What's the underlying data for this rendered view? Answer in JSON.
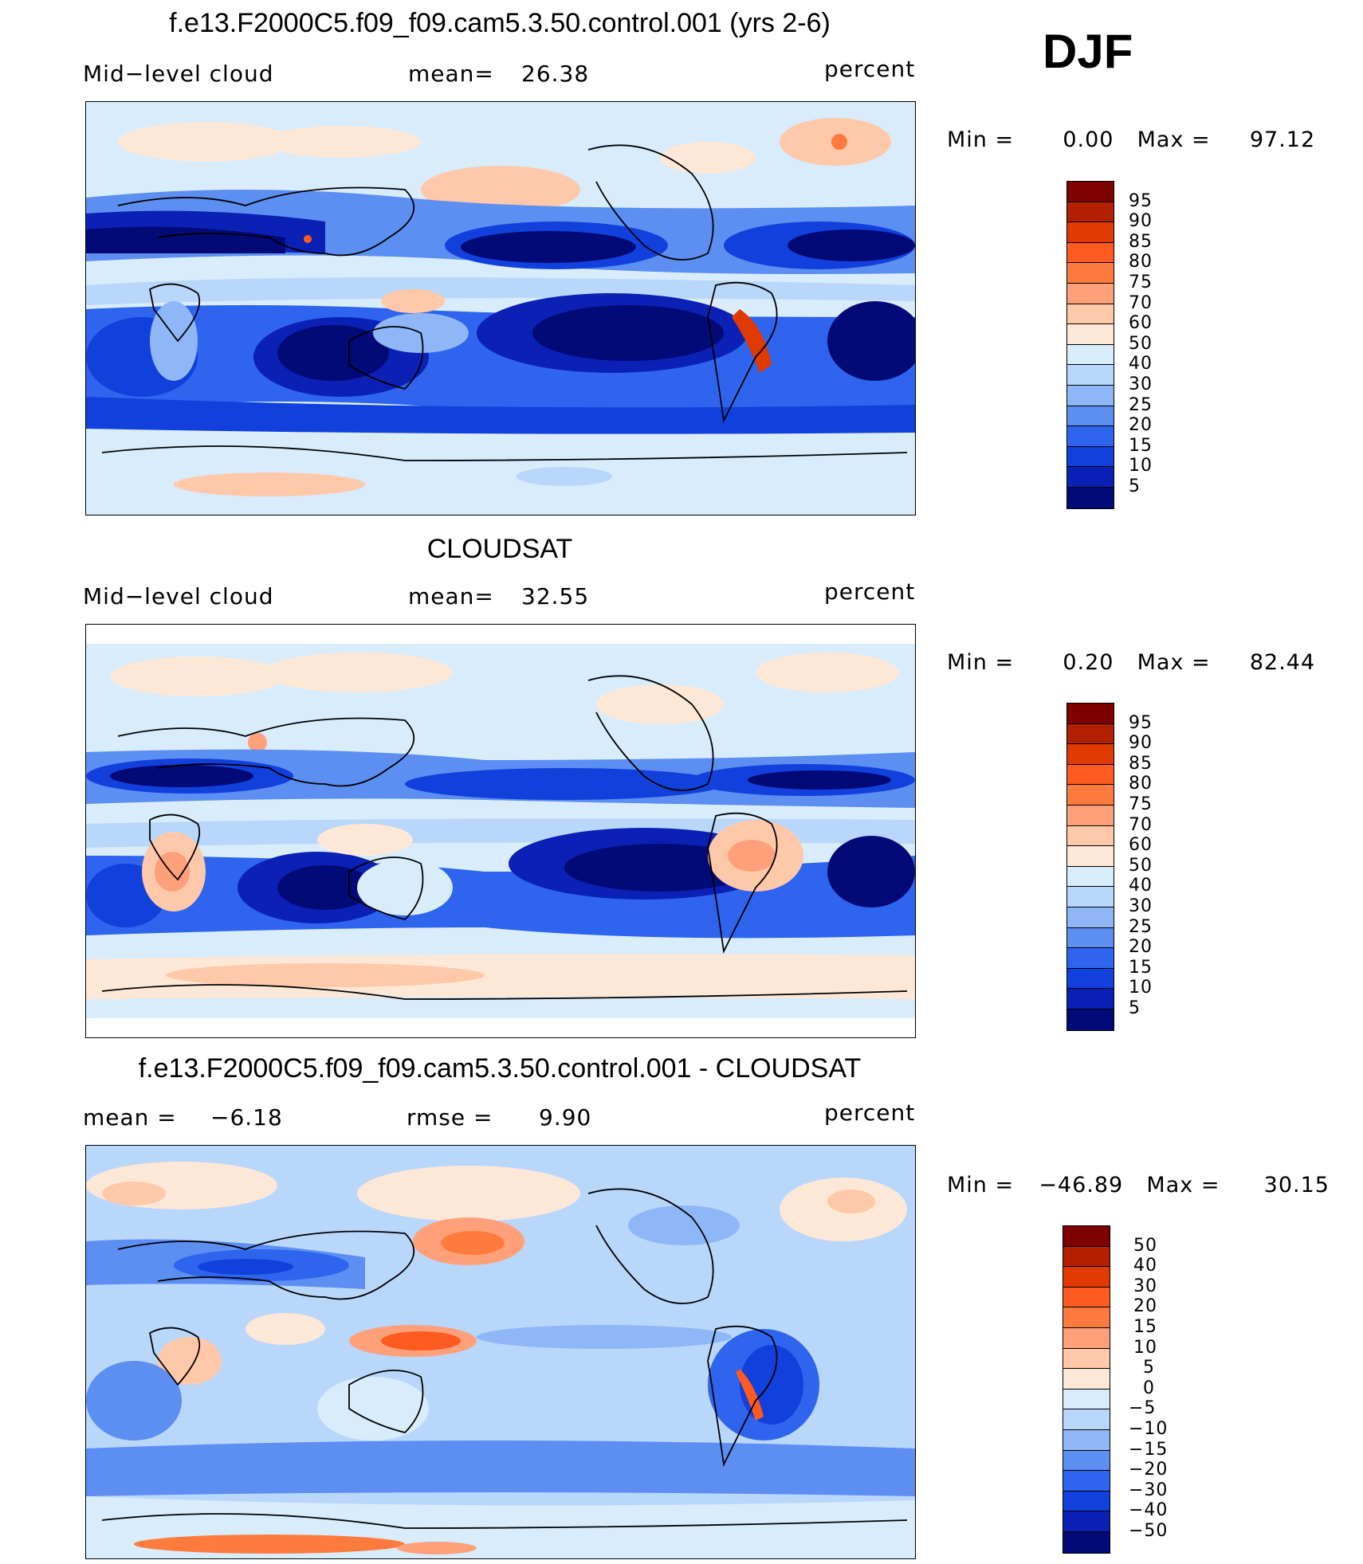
{
  "season": "DJF",
  "unit_label": "percent",
  "panels": [
    {
      "title": "f.e13.F2000C5.f09_f09.cam5.3.50.control.001 (yrs 2-6)",
      "left_label": "Mid−level cloud",
      "stat1_label": "mean=",
      "stat1_value": "26.38",
      "minmax_label": "Min =",
      "min_value": "0.00",
      "max_label": "Max =",
      "max_value": "97.12"
    },
    {
      "title": "CLOUDSAT",
      "left_label": "Mid−level cloud",
      "stat1_label": "mean=",
      "stat1_value": "32.55",
      "minmax_label": "Min =",
      "min_value": "0.20",
      "max_label": "Max =",
      "max_value": "82.44"
    },
    {
      "title": "f.e13.F2000C5.f09_f09.cam5.3.50.control.001 - CLOUDSAT",
      "left_label": "mean =",
      "left_value": "−6.18",
      "stat1_label": "rmse =",
      "stat1_value": "9.90",
      "minmax_label": "Min =",
      "min_value": "−46.89",
      "max_label": "Max =",
      "max_value": "30.15"
    }
  ],
  "colorbars": {
    "abs": {
      "labels": [
        "95",
        "90",
        "85",
        "80",
        "75",
        "70",
        "60",
        "50",
        "40",
        "30",
        "25",
        "20",
        "15",
        "10",
        "5"
      ],
      "colors": [
        "#7f0000",
        "#b32000",
        "#e03a00",
        "#ff5a1f",
        "#ff7b3d",
        "#ffa07a",
        "#ffc8a8",
        "#fde8d8",
        "#d8ecfc",
        "#b9d6fb",
        "#8fb6f7",
        "#5d8ef1",
        "#2f64ee",
        "#1240dc",
        "#0b21b6",
        "#020a78"
      ]
    },
    "diff": {
      "labels": [
        "50",
        "40",
        "30",
        "20",
        "15",
        "10",
        "5",
        "0",
        "−5",
        "−10",
        "−15",
        "−20",
        "−30",
        "−40",
        "−50"
      ],
      "colors": [
        "#7f0000",
        "#b32000",
        "#e03a00",
        "#ff5a1f",
        "#ff7b3d",
        "#ffa07a",
        "#ffc8a8",
        "#fde8d8",
        "#d8ecfc",
        "#b9d6fb",
        "#8fb6f7",
        "#5d8ef1",
        "#2f64ee",
        "#1240dc",
        "#0b21b6",
        "#020a78"
      ]
    }
  }
}
